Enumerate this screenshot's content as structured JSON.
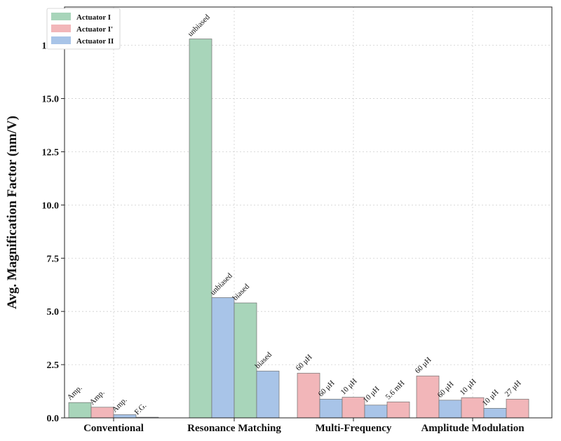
{
  "chart_data": {
    "type": "bar",
    "ylabel": "Avg. Magnification Factor (nm/V)",
    "xlabel": "",
    "ylim": [
      0,
      19.3
    ],
    "yticks": [
      0.0,
      2.5,
      5.0,
      7.5,
      10.0,
      12.5,
      15.0,
      17.5
    ],
    "ytick_labels": [
      "0.0",
      "2.5",
      "5.0",
      "7.5",
      "10.0",
      "12.5",
      "15.0",
      "17.5"
    ],
    "grid": true,
    "legend_position": "top-left",
    "legend": [
      {
        "name": "Actuator I",
        "color": "#a8d5ba"
      },
      {
        "name": "Actuator I'",
        "color": "#f2b6b9"
      },
      {
        "name": "Actuator II",
        "color": "#a8c4e8"
      }
    ],
    "categories": [
      "Conventional",
      "Resonance Matching",
      "Multi-Frequency",
      "Amplitude Modulation"
    ],
    "groups": [
      {
        "category": "Conventional",
        "bars": [
          {
            "actuator": "Actuator I",
            "value": 0.72,
            "label": "Amp."
          },
          {
            "actuator": "Actuator I'",
            "value": 0.5,
            "label": "Amp."
          },
          {
            "actuator": "Actuator II",
            "value": 0.15,
            "label": "Amp."
          },
          {
            "actuator": "Actuator II",
            "value": 0.03,
            "label": "F.G."
          }
        ]
      },
      {
        "category": "Resonance Matching",
        "bars": [
          {
            "actuator": "Actuator I",
            "value": 17.8,
            "label": "unbiased"
          },
          {
            "actuator": "Actuator II",
            "value": 5.65,
            "label": "unbiased"
          },
          {
            "actuator": "Actuator I",
            "value": 5.4,
            "label": "biased"
          },
          {
            "actuator": "Actuator II",
            "value": 2.2,
            "label": "biased"
          }
        ]
      },
      {
        "category": "Multi-Frequency",
        "bars": [
          {
            "actuator": "Actuator I'",
            "value": 2.1,
            "label": "60 μH"
          },
          {
            "actuator": "Actuator II",
            "value": 0.88,
            "label": "60 μH"
          },
          {
            "actuator": "Actuator I'",
            "value": 0.97,
            "label": "10 μH"
          },
          {
            "actuator": "Actuator II",
            "value": 0.6,
            "label": "10 μH"
          },
          {
            "actuator": "Actuator I'",
            "value": 0.75,
            "label": "5.6 mH"
          }
        ]
      },
      {
        "category": "Amplitude Modulation",
        "bars": [
          {
            "actuator": "Actuator I'",
            "value": 1.97,
            "label": "60 μH"
          },
          {
            "actuator": "Actuator II",
            "value": 0.83,
            "label": "60 μH"
          },
          {
            "actuator": "Actuator I'",
            "value": 0.95,
            "label": "10 μH"
          },
          {
            "actuator": "Actuator II",
            "value": 0.45,
            "label": "10 μH"
          },
          {
            "actuator": "Actuator I'",
            "value": 0.88,
            "label": "27 μH"
          }
        ]
      }
    ]
  }
}
